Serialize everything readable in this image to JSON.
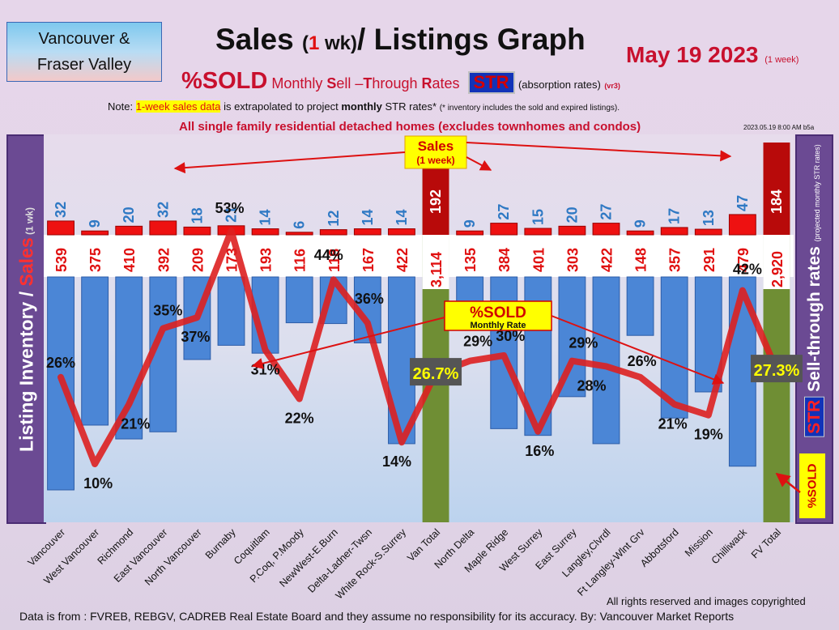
{
  "header": {
    "region_line1": "Vancouver &",
    "region_line2": "Fraser Valley",
    "title_main": "Sales ",
    "title_paren_open": "(",
    "title_paren_num": "1",
    "title_paren_close": " wk)",
    "title_rest": "/ Listings Graph",
    "date": "May 19  2023",
    "date_note": "(1 week)",
    "subtitle_sold": "%SOLD",
    "subtitle_m": " Monthly ",
    "subtitle_s": "S",
    "subtitle_ell": "ell –",
    "subtitle_t": "T",
    "subtitle_hrough": "hrough ",
    "subtitle_r": "R",
    "subtitle_ates": "ates",
    "subtitle_str": "STR",
    "subtitle_abs": "(absorption rates)",
    "subtitle_vr": "(vr3)",
    "note_prefix": "Note: ",
    "note_highlight": "1-week sales data",
    "note_mid": " is extrapolated to project ",
    "note_bold": "monthly",
    "note_end": " STR rates* ",
    "note_small": "(* inventory includes the sold and expired listings).",
    "homes": "All single family residential detached homes (excludes townhomes and condos)",
    "stamp": "2023.05.19 8:00 AM b5a",
    "left_axis_a": "Listing Inventory / ",
    "left_axis_b": "Sales",
    "left_axis_c": " (1 wk)",
    "right_axis_a": "Sell-through rates ",
    "right_axis_small": "(projected monthly STR rates)",
    "right_axis_str": "STR",
    "right_tag": "%SOLD"
  },
  "footer": {
    "source": "Data is from : FVREB, REBGV, CADREB Real Estate Board and they assume no responsibility for its accuracy.  By: Vancouver Market Reports",
    "rights": "All rights reserved and  images copyrighted"
  },
  "callouts": {
    "sales_label": "Sales",
    "sales_sub": "(1 week)",
    "sold_label": "%SOLD",
    "sold_sub": "Monthly Rate"
  },
  "colors": {
    "sales": "#ee1111",
    "sales_total": "#b80a0a",
    "inventory": "#4b86d6",
    "inventory_total": "#6f8e34",
    "line": "#dd2020",
    "callout_bg": "#ffff00"
  },
  "chart_data": {
    "type": "bar",
    "categories": [
      "Vancouver",
      "West Vancouver",
      "Richmond",
      "East Vancouver",
      "North Vancouver",
      "Burnaby",
      "Coquitlam",
      "P.Coq, P.Moody",
      "NewWest-E.Burn",
      "Delta-Ladner-Twsn",
      "White Rock-S.Surrey",
      "Van Total",
      "North Delta",
      "Maple Ridge",
      "West Surrey",
      "East Surrey",
      "Langley,Clvrdl",
      "Ft Langley-Wlnt Grv",
      "Abbotsford",
      "Mission",
      "Chilliwack",
      "FV Total"
    ],
    "series": [
      {
        "name": "Sales",
        "values": [
          32,
          9,
          20,
          32,
          18,
          21,
          14,
          6,
          12,
          14,
          14,
          192,
          9,
          27,
          15,
          20,
          27,
          9,
          17,
          13,
          47,
          184
        ]
      },
      {
        "name": "Listing Inventory",
        "values": [
          "539",
          "375",
          "410",
          "392",
          "209",
          "173",
          "193",
          "116",
          "118",
          "167",
          "422",
          "3,114",
          "135",
          "384",
          "401",
          "303",
          "422",
          "148",
          "357",
          "291",
          "479",
          "2,920"
        ]
      },
      {
        "name": "%SOLD",
        "values": [
          "26%",
          "10%",
          "21%",
          "35%",
          "37%",
          "53%",
          "31%",
          "22%",
          "44%",
          "36%",
          "14%",
          "26.7%",
          "29%",
          "30%",
          "16%",
          "29%",
          "28%",
          "26%",
          "21%",
          "19%",
          "42%",
          "27.3%"
        ]
      }
    ],
    "sold_pct": [
      26,
      10,
      21,
      35,
      37,
      53,
      31,
      22,
      44,
      36,
      14,
      26.7,
      29,
      30,
      16,
      29,
      28,
      26,
      21,
      19,
      42,
      27.3
    ],
    "inventory_num": [
      539,
      375,
      410,
      392,
      209,
      173,
      193,
      116,
      118,
      167,
      422,
      3114,
      135,
      384,
      401,
      303,
      422,
      148,
      357,
      291,
      479,
      2920
    ],
    "totals": [
      "Van Total",
      "FV Total"
    ]
  }
}
